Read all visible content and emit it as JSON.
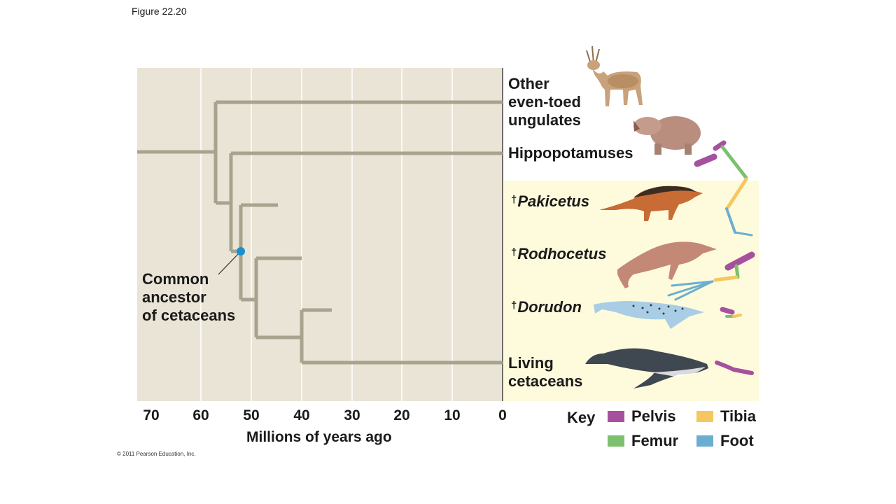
{
  "figure_label": "Figure 22.20",
  "taxa": {
    "other_ungulates": [
      "Other",
      "even-toed",
      "ungulates"
    ],
    "hippos": "Hippopotamuses",
    "pakicetus": "Pakicetus",
    "rodhocetus": "Rodhocetus",
    "dorudon": "Dorudon",
    "living_cetaceans": [
      "Living",
      "cetaceans"
    ],
    "extinct_mark": "†"
  },
  "ancestor_label": [
    "Common",
    "ancestor",
    "of cetaceans"
  ],
  "axis": {
    "title": "Millions of years ago",
    "ticks": [
      "70",
      "60",
      "50",
      "40",
      "30",
      "20",
      "10",
      "0"
    ]
  },
  "key": {
    "title": "Key",
    "items": [
      {
        "label": "Pelvis",
        "color": "#a6519e"
      },
      {
        "label": "Tibia",
        "color": "#f6c760"
      },
      {
        "label": "Femur",
        "color": "#7cc070"
      },
      {
        "label": "Foot",
        "color": "#6baed0"
      }
    ]
  },
  "colors": {
    "plot_bg": "#e9e4d5",
    "highlight_bg": "#fefbdc",
    "branch": "#a8a38f",
    "node": "#1a8fd0"
  },
  "copyright": "© 2011 Pearson Education, Inc."
}
